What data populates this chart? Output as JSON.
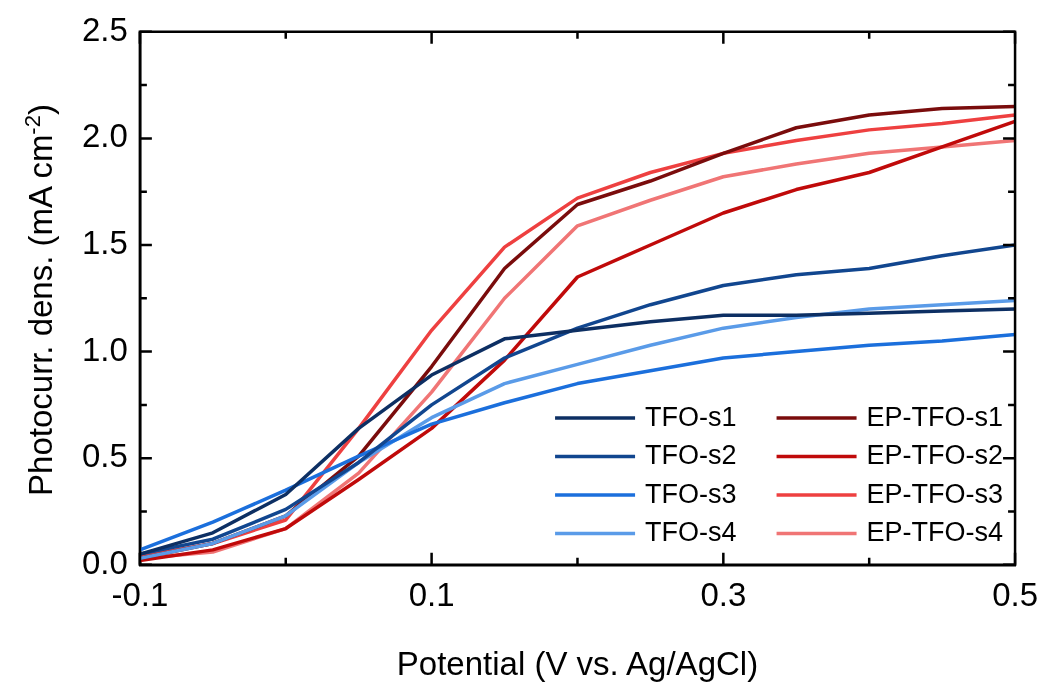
{
  "chart_data": {
    "type": "line",
    "xlabel": "Potential (V vs. Ag/AgCl)",
    "ylabel": "Photocurr. dens. (mA cm$^{-2}$)",
    "x": [
      -0.1,
      -0.05,
      0,
      0.05,
      0.1,
      0.15,
      0.2,
      0.25,
      0.3,
      0.35,
      0.4,
      0.45,
      0.5
    ],
    "xlim": [
      -0.1,
      0.5
    ],
    "xticks": [
      -0.1,
      {
        "value": 0,
        "label": null
      },
      0.1,
      {
        "value": 0.2,
        "label": null
      },
      0.3,
      {
        "value": 0.4,
        "label": null
      },
      0.5
    ],
    "ylim": [
      0,
      2.5
    ],
    "yticks": [
      {
        "value": 0,
        "label": "0.0"
      },
      {
        "value": 0.25,
        "label": null
      },
      0.5,
      {
        "value": 0.75,
        "label": null
      },
      {
        "value": 1,
        "label": "1.0"
      },
      {
        "value": 1.25,
        "label": null
      },
      1.5,
      {
        "value": 1.75,
        "label": null
      },
      {
        "value": 2,
        "label": "2.0"
      },
      {
        "value": 2.25,
        "label": null
      },
      2.5
    ],
    "grid": false,
    "legend": "bottom right",
    "marker": "none",
    "line_style": "solid",
    "series": [
      {
        "name": "TFO-s1",
        "color": "#0d2f63",
        "values": [
          0.05,
          0.15,
          0.33,
          0.64,
          0.89,
          1.06,
          1.1,
          1.14,
          1.17,
          1.17,
          1.18,
          1.19,
          1.2
        ]
      },
      {
        "name": "TFO-s2",
        "color": "#11468f",
        "values": [
          0.05,
          0.12,
          0.26,
          0.48,
          0.75,
          0.97,
          1.11,
          1.22,
          1.31,
          1.36,
          1.39,
          1.45,
          1.5
        ]
      },
      {
        "name": "TFO-s3",
        "color": "#1b6fdc",
        "values": [
          0.07,
          0.2,
          0.35,
          0.51,
          0.66,
          0.76,
          0.85,
          0.91,
          0.97,
          1.0,
          1.03,
          1.05,
          1.08
        ]
      },
      {
        "name": "TFO-s4",
        "color": "#5a9be8",
        "values": [
          0.03,
          0.1,
          0.23,
          0.48,
          0.69,
          0.85,
          0.94,
          1.03,
          1.11,
          1.16,
          1.2,
          1.22,
          1.24
        ]
      },
      {
        "name": "EP-TFO-s1",
        "color": "#7a0c0c",
        "values": [
          0.03,
          0.1,
          0.23,
          0.51,
          0.93,
          1.39,
          1.69,
          1.8,
          1.93,
          2.05,
          2.11,
          2.14,
          2.15
        ]
      },
      {
        "name": "EP-TFO-s2",
        "color": "#c00a0a",
        "values": [
          0.02,
          0.07,
          0.17,
          0.4,
          0.64,
          0.96,
          1.35,
          1.5,
          1.65,
          1.76,
          1.84,
          1.96,
          2.08
        ]
      },
      {
        "name": "EP-TFO-s3",
        "color": "#ee4040",
        "values": [
          0.04,
          0.1,
          0.21,
          0.64,
          1.1,
          1.49,
          1.72,
          1.84,
          1.93,
          1.99,
          2.04,
          2.07,
          2.11
        ]
      },
      {
        "name": "EP-TFO-s4",
        "color": "#f07575",
        "values": [
          0.03,
          0.06,
          0.17,
          0.43,
          0.81,
          1.25,
          1.59,
          1.71,
          1.82,
          1.88,
          1.93,
          1.96,
          1.99
        ]
      }
    ]
  }
}
